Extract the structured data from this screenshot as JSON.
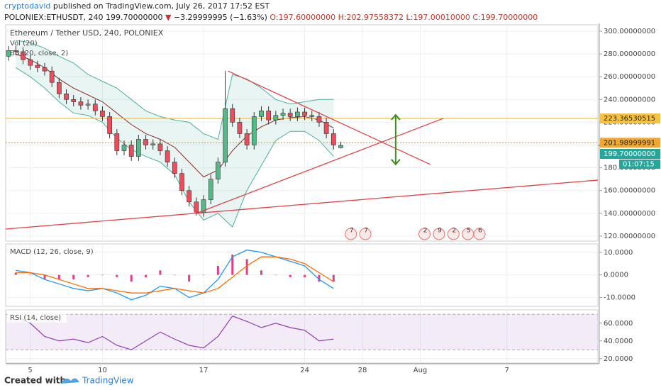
{
  "header": {
    "author": "cryptodavid",
    "published": "published on TradingView.com, July 26, 2017 17:52 EST",
    "symbol": "POLONIEX:ETHUSDT, 240",
    "last": "199.70000000",
    "arrow": "▼",
    "change": "−3.29999995 (−1.63%)",
    "open": "O:197.60000000",
    "high": "H:202.97558372",
    "low": "L:197.00010000",
    "close": "C:199.70000000"
  },
  "footer": {
    "created": "Created with",
    "brand": "TradingView"
  },
  "chart_data": [
    {
      "type": "candlestick",
      "title": "Ethereum / Tether USD, 240, POLONIEX",
      "indicators": [
        "Vol (20)",
        "BB (20, close, 2)"
      ],
      "x": [
        3.5,
        4,
        4.5,
        5,
        5.5,
        6,
        6.5,
        7,
        7.5,
        8,
        8.5,
        9,
        9.5,
        10,
        10.5,
        11,
        11.5,
        12,
        12.5,
        13,
        13.5,
        14,
        14.5,
        15,
        15.5,
        16,
        16.5,
        17,
        17.5,
        18,
        18.5,
        19,
        19.5,
        20,
        20.5,
        21,
        21.5,
        22,
        22.5,
        23,
        23.5,
        24,
        24.5,
        25,
        25.5,
        26,
        26.5
      ],
      "open": [
        278,
        283,
        282,
        275,
        270,
        268,
        265,
        255,
        245,
        240,
        238,
        235,
        236,
        230,
        225,
        210,
        195,
        200,
        190,
        205,
        200,
        201,
        195,
        185,
        175,
        160,
        150,
        141,
        152,
        170,
        185,
        232,
        220,
        210,
        200,
        225,
        230,
        222,
        226,
        228,
        225,
        229,
        226,
        225,
        220,
        210,
        197.6
      ],
      "high": [
        287,
        287,
        286,
        279,
        274,
        272,
        269,
        259,
        249,
        244,
        242,
        240,
        240,
        234,
        229,
        214,
        204,
        204,
        209,
        209,
        205,
        205,
        199,
        189,
        179,
        164,
        154,
        156,
        174,
        189,
        265,
        236,
        224,
        214,
        229,
        234,
        234,
        230,
        232,
        232,
        233,
        233,
        230,
        229,
        224,
        214,
        202.97558372
      ],
      "low": [
        274,
        279,
        271,
        266,
        264,
        261,
        251,
        241,
        236,
        234,
        231,
        231,
        226,
        221,
        206,
        191,
        191,
        186,
        186,
        196,
        196,
        191,
        181,
        171,
        156,
        146,
        138,
        137,
        148,
        166,
        181,
        216,
        206,
        196,
        196,
        221,
        218,
        218,
        222,
        221,
        221,
        222,
        221,
        216,
        206,
        196,
        197.0001
      ],
      "close": [
        283,
        282,
        275,
        270,
        268,
        265,
        255,
        245,
        240,
        238,
        235,
        236,
        230,
        225,
        210,
        195,
        200,
        190,
        205,
        200,
        201,
        195,
        185,
        175,
        160,
        150,
        141,
        152,
        170,
        185,
        232,
        220,
        210,
        200,
        225,
        230,
        222,
        226,
        228,
        225,
        229,
        226,
        225,
        220,
        210,
        200,
        199.7
      ],
      "colors": {
        "up": "#53b987",
        "down": "#eb4d5c"
      },
      "bands": {
        "x": [
          4,
          5,
          6,
          7,
          8,
          9,
          10,
          11,
          12,
          13,
          14,
          15,
          16,
          17,
          18,
          19,
          20,
          21,
          22,
          23,
          24,
          25,
          26
        ],
        "upper": [
          292,
          290,
          285,
          278,
          272,
          262,
          256,
          250,
          240,
          230,
          225,
          222,
          220,
          210,
          205,
          262,
          258,
          250,
          240,
          236,
          238,
          240,
          240
        ],
        "middle": [
          280,
          275,
          268,
          258,
          250,
          244,
          238,
          228,
          218,
          210,
          205,
          198,
          185,
          172,
          178,
          195,
          208,
          216,
          222,
          224,
          225,
          222,
          215
        ],
        "lower": [
          268,
          260,
          250,
          238,
          228,
          226,
          220,
          206,
          196,
          190,
          185,
          174,
          150,
          134,
          140,
          128,
          160,
          182,
          204,
          212,
          212,
          204,
          190
        ],
        "color": "#4caf9a",
        "middle_color": "#8e2a2a"
      },
      "hlines": [
        {
          "value": 223.36530515,
          "label": "223.36530515",
          "color": "#f5c242"
        },
        {
          "value": 201.98999991,
          "label": "201.98999991",
          "color": "#f0a830"
        }
      ],
      "price_tag": {
        "value": 199.7,
        "label": "199.70000000",
        "color": "#26a69a"
      },
      "countdown": "01:07:15",
      "trendlines": [
        {
          "x": [
            18.7,
            32.7
          ],
          "y": [
            265,
            182.9
          ]
        },
        {
          "x": [
            16.5,
            33.6
          ],
          "y": [
            140,
            223.4
          ]
        },
        {
          "x": [
            3.3,
            44.3
          ],
          "y": [
            126.2,
            169.2
          ]
        }
      ],
      "trend_color": "#e0424a",
      "arrow": {
        "x": 30.3,
        "y": [
          226.5,
          183
        ],
        "color": "#3c8c1f"
      },
      "events": [
        {
          "x": 27.2,
          "label": "7"
        },
        {
          "x": 28.2,
          "label": "7"
        },
        {
          "x": 32.3,
          "label": "2"
        },
        {
          "x": 33.3,
          "label": "9"
        },
        {
          "x": 34.3,
          "label": "2"
        },
        {
          "x": 35.3,
          "label": "5"
        },
        {
          "x": 36.1,
          "label": "6"
        }
      ],
      "xlim": [
        3.3,
        44.3
      ],
      "xticks": [
        5,
        10,
        17,
        24,
        28,
        {
          "value": 32,
          "label": "Aug"
        },
        {
          "value": 38,
          "label": "7"
        }
      ],
      "ylim": [
        115.6,
        305.6
      ],
      "yticks": [
        {
          "value": 120,
          "label": "120.00000000"
        },
        {
          "value": 140,
          "label": "140.00000000"
        },
        {
          "value": 160,
          "label": "160.00000000"
        },
        {
          "value": 180,
          "label": "180.00000000"
        },
        {
          "value": 200,
          "label": "200.00000000"
        },
        {
          "value": 220,
          "label": "220.00000000"
        },
        {
          "value": 240,
          "label": "240.00000000"
        },
        {
          "value": 260,
          "label": "260.00000000"
        },
        {
          "value": 280,
          "label": "280.00000000"
        },
        {
          "value": 300,
          "label": "300.00000000"
        }
      ],
      "grid": true
    },
    {
      "type": "macd",
      "title": "MACD (12, 26, close, 9)",
      "x": [
        4,
        5,
        6,
        7,
        8,
        9,
        10,
        11,
        12,
        13,
        14,
        15,
        16,
        17,
        18,
        19,
        20,
        21,
        22,
        23,
        24,
        25,
        26
      ],
      "series": [
        {
          "values": [
            2,
            1,
            -2,
            -4,
            -6,
            -7,
            -6,
            -8,
            -11,
            -9,
            -5,
            -6,
            -10,
            -8,
            -2,
            8,
            11,
            10,
            8,
            6,
            4,
            -2,
            -6
          ],
          "color": "#2196f3"
        },
        {
          "values": [
            1,
            1,
            0,
            -2,
            -4,
            -6,
            -6,
            -7,
            -8,
            -8,
            -7,
            -6,
            -7,
            -8,
            -6,
            -1,
            4,
            8,
            8,
            7,
            5,
            1,
            -3
          ],
          "color": "#ff6d00"
        }
      ],
      "histogram": {
        "values": [
          1,
          0,
          -2,
          -2,
          -2,
          -1,
          0,
          -1,
          -3,
          -1,
          2,
          0,
          -3,
          0,
          4,
          9,
          7,
          2,
          0,
          -1,
          -1,
          -3,
          -3
        ],
        "color": "#e0408a"
      },
      "ylim": [
        -13.9,
        13.7
      ],
      "yticks": [
        {
          "value": 10,
          "label": "10.0000"
        },
        {
          "value": 0,
          "label": "0.0000"
        },
        {
          "value": -10,
          "label": "-10.0000"
        }
      ]
    },
    {
      "type": "rsi",
      "title": "RSI (14, close)",
      "x": [
        4,
        5,
        6,
        7,
        8,
        9,
        10,
        11,
        12,
        13,
        14,
        15,
        16,
        17,
        18,
        19,
        20,
        21,
        22,
        23,
        24,
        25,
        26
      ],
      "values": [
        68,
        60,
        45,
        40,
        42,
        38,
        45,
        35,
        30,
        40,
        50,
        42,
        35,
        32,
        45,
        68,
        62,
        55,
        60,
        55,
        52,
        40,
        42
      ],
      "color": "#8e3fae",
      "bands": [
        30,
        70
      ],
      "ylim": [
        15,
        75
      ],
      "yticks": [
        {
          "value": 20,
          "label": "20.0000"
        },
        {
          "value": 40,
          "label": "40.0000"
        },
        {
          "value": 60,
          "label": "60.0000"
        }
      ]
    }
  ]
}
